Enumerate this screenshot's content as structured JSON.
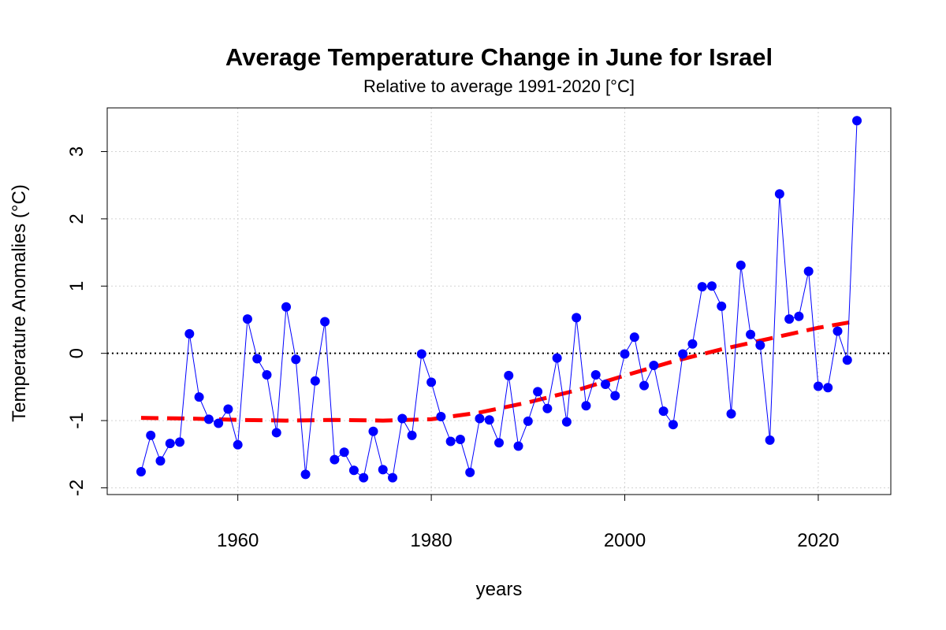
{
  "chart_data": {
    "type": "line",
    "title": "Average Temperature Change in June for Israel",
    "subtitle": "Relative to average 1991-2020 [°C]",
    "xlabel": "years",
    "ylabel": "Temperature Anomalies (°C)",
    "xlim": [
      1946.5,
      2027.5
    ],
    "ylim": [
      -2.1,
      3.65
    ],
    "x_ticks": [
      1960,
      1980,
      2000,
      2020
    ],
    "y_ticks": [
      -2,
      -1,
      0,
      1,
      2,
      3
    ],
    "x_tick_labels": [
      "1960",
      "1980",
      "2000",
      "2020"
    ],
    "y_tick_labels": [
      "-2",
      "-1",
      "0",
      "1",
      "2",
      "3"
    ],
    "grid": true,
    "zero_line": 0,
    "colors": {
      "series": "#0000ff",
      "trend": "#ff0000",
      "grid": "#d3d3d3",
      "zero_line": "#000000"
    },
    "series": [
      {
        "style": "line-with-points",
        "x": [
          1950,
          1951,
          1952,
          1953,
          1954,
          1955,
          1956,
          1957,
          1958,
          1959,
          1960,
          1961,
          1962,
          1963,
          1964,
          1965,
          1966,
          1967,
          1968,
          1969,
          1970,
          1971,
          1972,
          1973,
          1974,
          1975,
          1976,
          1977,
          1978,
          1979,
          1980,
          1981,
          1982,
          1983,
          1984,
          1985,
          1986,
          1987,
          1988,
          1989,
          1990,
          1991,
          1992,
          1993,
          1994,
          1995,
          1996,
          1997,
          1998,
          1999,
          2000,
          2001,
          2002,
          2003,
          2004,
          2005,
          2006,
          2007,
          2008,
          2009,
          2010,
          2011,
          2012,
          2013,
          2014,
          2015,
          2016,
          2017,
          2018,
          2019,
          2020,
          2021,
          2022,
          2023,
          2024
        ],
        "values": [
          -1.76,
          -1.22,
          -1.6,
          -1.34,
          -1.32,
          0.29,
          -0.65,
          -0.98,
          -1.04,
          -0.83,
          -1.36,
          0.51,
          -0.08,
          -0.32,
          -1.18,
          0.69,
          -0.09,
          -1.8,
          -0.41,
          0.47,
          -1.58,
          -1.47,
          -1.74,
          -1.85,
          -1.16,
          -1.73,
          -1.85,
          -0.97,
          -1.22,
          -0.01,
          -0.43,
          -0.94,
          -1.31,
          -1.28,
          -1.77,
          -0.97,
          -0.99,
          -1.33,
          -0.33,
          -1.38,
          -1.01,
          -0.57,
          -0.82,
          -0.07,
          -1.02,
          0.53,
          -0.78,
          -0.32,
          -0.46,
          -0.63,
          -0.01,
          0.24,
          -0.48,
          -0.18,
          -0.86,
          -1.06,
          -0.01,
          0.14,
          0.99,
          1.0,
          0.7,
          -0.9,
          1.31,
          0.28,
          0.12,
          -1.29,
          2.37,
          0.51,
          0.55,
          1.22,
          -0.49,
          -0.51,
          0.33,
          -0.1,
          3.46
        ]
      },
      {
        "style": "dashed-trend",
        "x": [
          1950,
          1955,
          1960,
          1965,
          1970,
          1975,
          1980,
          1985,
          1990,
          1995,
          2000,
          2005,
          2010,
          2015,
          2020,
          2024
        ],
        "values": [
          -0.96,
          -0.97,
          -0.99,
          -1.0,
          -0.99,
          -1.0,
          -0.98,
          -0.88,
          -0.73,
          -0.55,
          -0.33,
          -0.12,
          0.06,
          0.22,
          0.38,
          0.48
        ]
      }
    ]
  }
}
